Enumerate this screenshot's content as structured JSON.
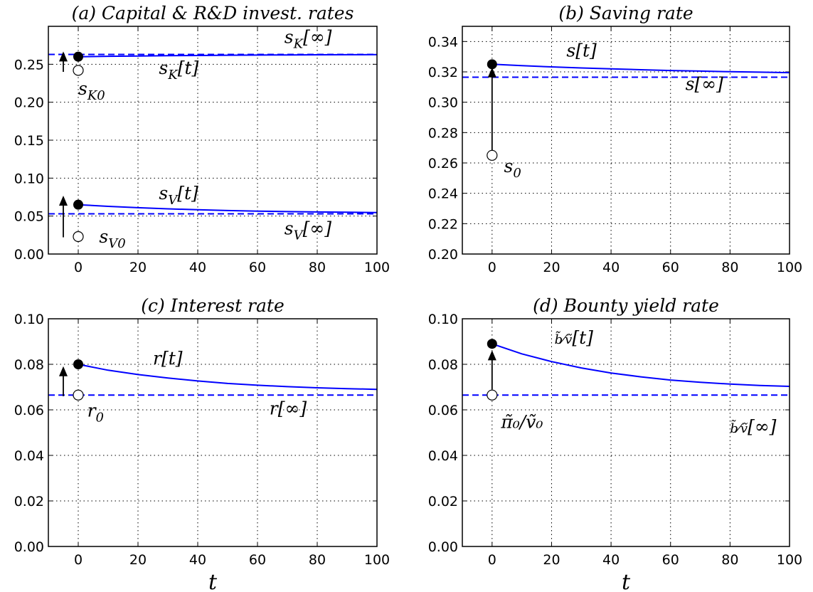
{
  "chart_data": [
    {
      "type": "line",
      "title": "(a) Capital & R&D invest. rates",
      "xlabel": "",
      "ylabel": "",
      "xlim": [
        -10,
        100
      ],
      "ylim": [
        0,
        0.3
      ],
      "xticks": [
        "0",
        "20",
        "40",
        "60",
        "80",
        "100"
      ],
      "yticks": [
        "0.00",
        "0.05",
        "0.10",
        "0.15",
        "0.20",
        "0.25"
      ],
      "grid": true,
      "series": [
        {
          "name": "s_K[t]",
          "style": "solid",
          "color": "#0000ff",
          "x": [
            0,
            10,
            20,
            30,
            40,
            50,
            60,
            70,
            80,
            90,
            100
          ],
          "y": [
            0.26,
            0.2605,
            0.2609,
            0.2613,
            0.2616,
            0.2619,
            0.2621,
            0.2623,
            0.2625,
            0.2626,
            0.2627
          ]
        },
        {
          "name": "s_K[∞]",
          "style": "dashed",
          "color": "#0000ff",
          "x": [
            -10,
            100
          ],
          "y": [
            0.263,
            0.263
          ]
        },
        {
          "name": "s_V[t]",
          "style": "solid",
          "color": "#0000ff",
          "x": [
            0,
            10,
            20,
            30,
            40,
            50,
            60,
            70,
            80,
            90,
            100
          ],
          "y": [
            0.065,
            0.0628,
            0.061,
            0.0595,
            0.0583,
            0.0573,
            0.0565,
            0.0559,
            0.0554,
            0.055,
            0.0547
          ]
        },
        {
          "name": "s_V[∞]",
          "style": "dashed",
          "color": "#0000ff",
          "x": [
            -10,
            100
          ],
          "y": [
            0.053,
            0.053
          ]
        }
      ],
      "markers": [
        {
          "kind": "filled",
          "x": 0,
          "y": 0.26
        },
        {
          "kind": "open",
          "x": 0,
          "y": 0.242
        },
        {
          "kind": "filled",
          "x": 0,
          "y": 0.065
        },
        {
          "kind": "open",
          "x": 0,
          "y": 0.023
        }
      ],
      "arrows": [
        {
          "x": -5,
          "y0": 0.24,
          "y1": 0.265
        },
        {
          "x": -5,
          "y0": 0.022,
          "y1": 0.075
        }
      ],
      "labels": [
        {
          "id": "skinf",
          "text": "s_K[∞]",
          "x": 69,
          "y": 0.278
        },
        {
          "id": "skt",
          "text": "s_K[t]",
          "x": 27,
          "y": 0.237
        },
        {
          "id": "sk0",
          "text": "s_K0",
          "x": 0,
          "y": 0.21
        },
        {
          "id": "svt",
          "text": "s_V[t]",
          "x": 27,
          "y": 0.072
        },
        {
          "id": "svinf",
          "text": "s_V[∞]",
          "x": 69,
          "y": 0.026
        },
        {
          "id": "sv0",
          "text": "s_V0",
          "x": 7,
          "y": 0.015
        }
      ]
    },
    {
      "type": "line",
      "title": "(b) Saving rate",
      "xlabel": "",
      "ylabel": "",
      "xlim": [
        -10,
        100
      ],
      "ylim": [
        0.2,
        0.35
      ],
      "xticks": [
        "0",
        "20",
        "40",
        "60",
        "80",
        "100"
      ],
      "yticks": [
        "0.20",
        "0.22",
        "0.24",
        "0.26",
        "0.28",
        "0.30",
        "0.32",
        "0.34"
      ],
      "grid": true,
      "series": [
        {
          "name": "s[t]",
          "style": "solid",
          "color": "#0000ff",
          "x": [
            0,
            10,
            20,
            30,
            40,
            50,
            60,
            70,
            80,
            90,
            100
          ],
          "y": [
            0.325,
            0.3241,
            0.3233,
            0.3226,
            0.322,
            0.3214,
            0.3209,
            0.3205,
            0.3201,
            0.3198,
            0.3195
          ]
        },
        {
          "name": "s[∞]",
          "style": "dashed",
          "color": "#0000ff",
          "x": [
            -10,
            100
          ],
          "y": [
            0.3165,
            0.3165
          ]
        }
      ],
      "markers": [
        {
          "kind": "filled",
          "x": 0,
          "y": 0.325
        },
        {
          "kind": "open",
          "x": 0,
          "y": 0.265
        }
      ],
      "arrows": [
        {
          "x": 0,
          "y0": 0.268,
          "y1": 0.322
        }
      ],
      "labels": [
        {
          "id": "st",
          "text": "s[t]",
          "x": 25,
          "y": 0.33
        },
        {
          "id": "sinf",
          "text": "s[∞]",
          "x": 65,
          "y": 0.308
        },
        {
          "id": "s0",
          "text": "s_0",
          "x": 4,
          "y": 0.254
        }
      ]
    },
    {
      "type": "line",
      "title": "(c) Interest rate",
      "xlabel": "t",
      "ylabel": "",
      "xlim": [
        -10,
        100
      ],
      "ylim": [
        0,
        0.1
      ],
      "xticks": [
        "0",
        "20",
        "40",
        "60",
        "80",
        "100"
      ],
      "yticks": [
        "0.00",
        "0.02",
        "0.04",
        "0.06",
        "0.08",
        "0.10"
      ],
      "grid": true,
      "series": [
        {
          "name": "r[t]",
          "style": "solid",
          "color": "#0000ff",
          "x": [
            0,
            10,
            20,
            30,
            40,
            50,
            60,
            70,
            80,
            90,
            100
          ],
          "y": [
            0.08,
            0.0774,
            0.0755,
            0.074,
            0.0727,
            0.0716,
            0.0708,
            0.0702,
            0.0697,
            0.0693,
            0.069
          ]
        },
        {
          "name": "r[∞]",
          "style": "dashed",
          "color": "#0000ff",
          "x": [
            -10,
            100
          ],
          "y": [
            0.0665,
            0.0665
          ]
        }
      ],
      "markers": [
        {
          "kind": "filled",
          "x": 0,
          "y": 0.08
        },
        {
          "kind": "open",
          "x": 0,
          "y": 0.0665
        }
      ],
      "arrows": [
        {
          "x": -5,
          "y0": 0.066,
          "y1": 0.0785
        }
      ],
      "labels": [
        {
          "id": "rt",
          "text": "r[t]",
          "x": 25,
          "y": 0.08
        },
        {
          "id": "rinf",
          "text": "r[∞]",
          "x": 64,
          "y": 0.058
        },
        {
          "id": "r0",
          "text": "r_0",
          "x": 3,
          "y": 0.057
        }
      ]
    },
    {
      "type": "line",
      "title": "(d) Bounty yield rate",
      "xlabel": "t",
      "ylabel": "",
      "xlim": [
        -10,
        100
      ],
      "ylim": [
        0,
        0.1
      ],
      "xticks": [
        "0",
        "20",
        "40",
        "60",
        "80",
        "100"
      ],
      "yticks": [
        "0.00",
        "0.02",
        "0.04",
        "0.06",
        "0.08",
        "0.10"
      ],
      "grid": true,
      "series": [
        {
          "name": "b̃/ṽ[t]",
          "style": "solid",
          "color": "#0000ff",
          "x": [
            0,
            10,
            20,
            30,
            40,
            50,
            60,
            70,
            80,
            90,
            100
          ],
          "y": [
            0.089,
            0.0846,
            0.0812,
            0.0784,
            0.0762,
            0.0745,
            0.0731,
            0.0721,
            0.0713,
            0.0707,
            0.0703
          ]
        },
        {
          "name": "b̃/ṽ[∞]",
          "style": "dashed",
          "color": "#0000ff",
          "x": [
            -10,
            100
          ],
          "y": [
            0.0665,
            0.0665
          ]
        }
      ],
      "markers": [
        {
          "kind": "filled",
          "x": 0,
          "y": 0.089
        },
        {
          "kind": "open",
          "x": 0,
          "y": 0.0665
        }
      ],
      "arrows": [
        {
          "x": 0,
          "y0": 0.069,
          "y1": 0.0855
        }
      ],
      "labels": [
        {
          "id": "bt",
          "text": "b̃/ṽ[t]",
          "x": 21,
          "y": 0.089
        },
        {
          "id": "binf",
          "text": "b̃/ṽ[∞]",
          "x": 80,
          "y": 0.05
        },
        {
          "id": "b0",
          "text": "π̃₀/ṽ₀",
          "x": 3,
          "y": 0.052
        }
      ]
    }
  ]
}
